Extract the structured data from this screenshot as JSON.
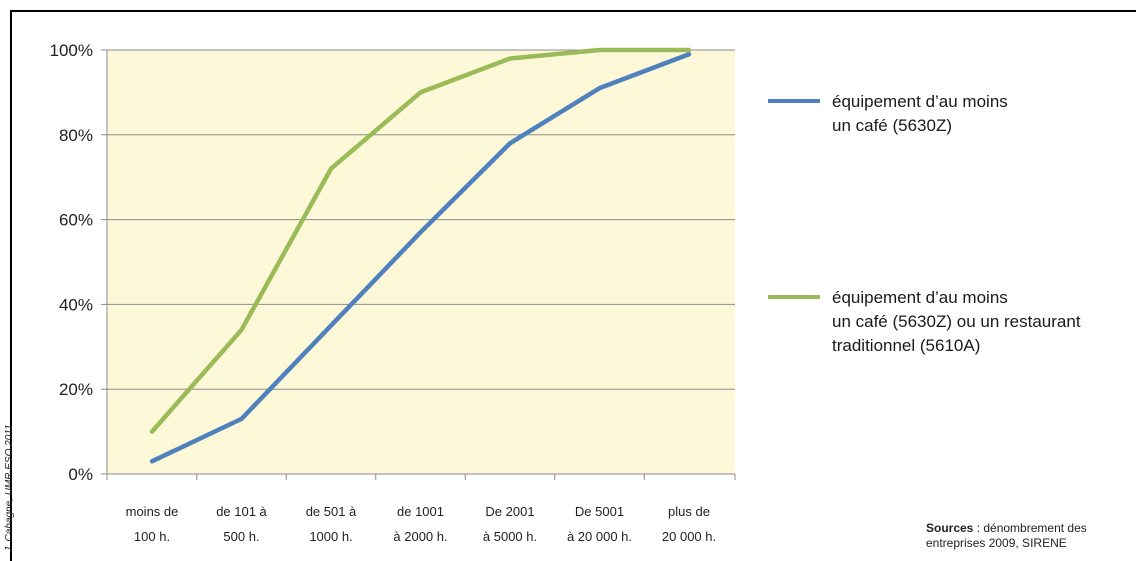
{
  "chart_data": {
    "type": "line",
    "categories": [
      [
        "moins de",
        "100 h."
      ],
      [
        "de 101 à",
        "500 h."
      ],
      [
        "de 501 à",
        "1000 h."
      ],
      [
        "de 1001",
        "à 2000 h."
      ],
      [
        "De 2001",
        "à 5000 h."
      ],
      [
        "De 5001",
        "à 20 000 h."
      ],
      [
        "plus de",
        "20  000 h."
      ]
    ],
    "ylim": [
      0,
      100
    ],
    "yticks": [
      "0%",
      "20%",
      "40%",
      "60%",
      "80%",
      "100%"
    ],
    "grid": true,
    "plot_background": "#fdf8d7",
    "series": [
      {
        "name": "équipement d’au moins un café (5630Z)",
        "name_lines": [
          "équipement d’au moins",
          "un café (5630Z)"
        ],
        "color": "#4f81bd",
        "values": [
          3,
          13,
          35,
          57,
          78,
          91,
          99
        ]
      },
      {
        "name": "équipement d’au moins un café (5630Z) ou un restaurant traditionnel (5610A)",
        "name_lines": [
          "équipement d’au moins",
          "un café (5630Z) ou un restaurant",
          "traditionnel (5610A)"
        ],
        "color": "#9bbb59",
        "values": [
          10,
          34,
          72,
          90,
          98,
          100,
          100
        ]
      }
    ]
  },
  "credit": "J. Cahagne, UMR ESO 2011",
  "sources": {
    "label": "Sources",
    "line1": " : dénombrement des",
    "line2": "entreprises 2009, SIRENE"
  }
}
